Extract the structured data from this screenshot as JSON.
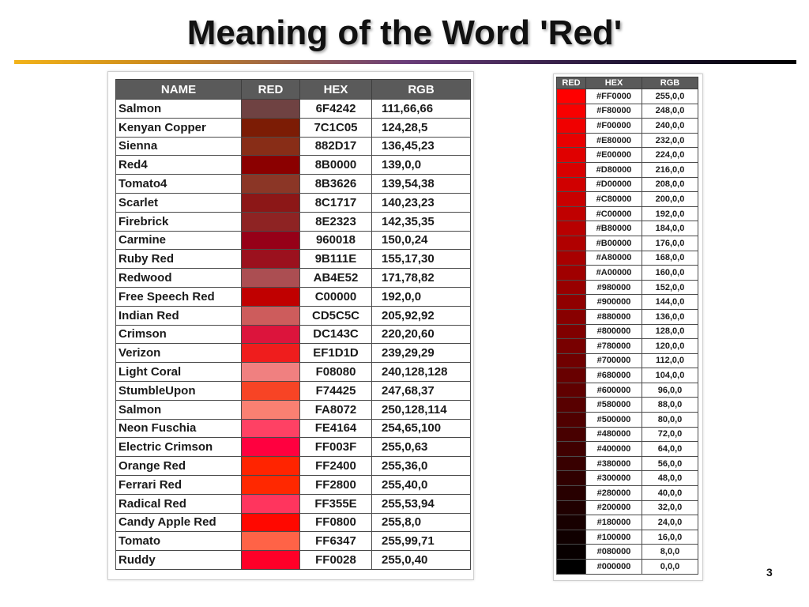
{
  "slide": {
    "title": "Meaning of the Word 'Red'",
    "page_number": "3"
  },
  "left_table": {
    "headers": {
      "name": "NAME",
      "red": "RED",
      "hex": "HEX",
      "rgb": "RGB"
    },
    "rows": [
      {
        "name": "Salmon",
        "hex": "6F4242",
        "rgb": "111,66,66",
        "color": "#6F4242"
      },
      {
        "name": "Kenyan Copper",
        "hex": "7C1C05",
        "rgb": "124,28,5",
        "color": "#7C1C05"
      },
      {
        "name": "Sienna",
        "hex": "882D17",
        "rgb": "136,45,23",
        "color": "#882D17"
      },
      {
        "name": "Red4",
        "hex": "8B0000",
        "rgb": "139,0,0",
        "color": "#8B0000"
      },
      {
        "name": "Tomato4",
        "hex": "8B3626",
        "rgb": "139,54,38",
        "color": "#8B3626"
      },
      {
        "name": "Scarlet",
        "hex": "8C1717",
        "rgb": "140,23,23",
        "color": "#8C1717"
      },
      {
        "name": "Firebrick",
        "hex": "8E2323",
        "rgb": "142,35,35",
        "color": "#8E2323"
      },
      {
        "name": "Carmine",
        "hex": "960018",
        "rgb": "150,0,24",
        "color": "#960018"
      },
      {
        "name": "Ruby Red",
        "hex": "9B111E",
        "rgb": "155,17,30",
        "color": "#9B111E"
      },
      {
        "name": "Redwood",
        "hex": "AB4E52",
        "rgb": "171,78,82",
        "color": "#AB4E52"
      },
      {
        "name": "Free Speech Red",
        "hex": "C00000",
        "rgb": "192,0,0",
        "color": "#C00000"
      },
      {
        "name": "Indian Red",
        "hex": "CD5C5C",
        "rgb": "205,92,92",
        "color": "#CD5C5C"
      },
      {
        "name": "Crimson",
        "hex": "DC143C",
        "rgb": "220,20,60",
        "color": "#DC143C"
      },
      {
        "name": "Verizon",
        "hex": "EF1D1D",
        "rgb": "239,29,29",
        "color": "#EF1D1D"
      },
      {
        "name": "Light Coral",
        "hex": "F08080",
        "rgb": "240,128,128",
        "color": "#F08080"
      },
      {
        "name": "StumbleUpon",
        "hex": "F74425",
        "rgb": "247,68,37",
        "color": "#F74425"
      },
      {
        "name": "Salmon",
        "hex": "FA8072",
        "rgb": "250,128,114",
        "color": "#FA8072"
      },
      {
        "name": "Neon Fuschia",
        "hex": "FE4164",
        "rgb": "254,65,100",
        "color": "#FE4164"
      },
      {
        "name": "Electric Crimson",
        "hex": "FF003F",
        "rgb": "255,0,63",
        "color": "#FF003F"
      },
      {
        "name": "Orange Red",
        "hex": "FF2400",
        "rgb": "255,36,0",
        "color": "#FF2400"
      },
      {
        "name": "Ferrari Red",
        "hex": "FF2800",
        "rgb": "255,40,0",
        "color": "#FF2800"
      },
      {
        "name": "Radical Red",
        "hex": "FF355E",
        "rgb": "255,53,94",
        "color": "#FF355E"
      },
      {
        "name": "Candy Apple Red",
        "hex": "FF0800",
        "rgb": "255,8,0",
        "color": "#FF0800"
      },
      {
        "name": "Tomato",
        "hex": "FF6347",
        "rgb": "255,99,71",
        "color": "#FF6347"
      },
      {
        "name": "Ruddy",
        "hex": "FF0028",
        "rgb": "255,0,40",
        "color": "#FF0028"
      }
    ]
  },
  "right_table": {
    "headers": {
      "red": "RED",
      "hex": "HEX",
      "rgb": "RGB"
    },
    "rows": [
      {
        "hex": "#FF0000",
        "rgb": "255,0,0",
        "color": "#FF0000"
      },
      {
        "hex": "#F80000",
        "rgb": "248,0,0",
        "color": "#F80000"
      },
      {
        "hex": "#F00000",
        "rgb": "240,0,0",
        "color": "#F00000"
      },
      {
        "hex": "#E80000",
        "rgb": "232,0,0",
        "color": "#E80000"
      },
      {
        "hex": "#E00000",
        "rgb": "224,0,0",
        "color": "#E00000"
      },
      {
        "hex": "#D80000",
        "rgb": "216,0,0",
        "color": "#D80000"
      },
      {
        "hex": "#D00000",
        "rgb": "208,0,0",
        "color": "#D00000"
      },
      {
        "hex": "#C80000",
        "rgb": "200,0,0",
        "color": "#C80000"
      },
      {
        "hex": "#C00000",
        "rgb": "192,0,0",
        "color": "#C00000"
      },
      {
        "hex": "#B80000",
        "rgb": "184,0,0",
        "color": "#B80000"
      },
      {
        "hex": "#B00000",
        "rgb": "176,0,0",
        "color": "#B00000"
      },
      {
        "hex": "#A80000",
        "rgb": "168,0,0",
        "color": "#A80000"
      },
      {
        "hex": "#A00000",
        "rgb": "160,0,0",
        "color": "#A00000"
      },
      {
        "hex": "#980000",
        "rgb": "152,0,0",
        "color": "#980000"
      },
      {
        "hex": "#900000",
        "rgb": "144,0,0",
        "color": "#900000"
      },
      {
        "hex": "#880000",
        "rgb": "136,0,0",
        "color": "#880000"
      },
      {
        "hex": "#800000",
        "rgb": "128,0,0",
        "color": "#800000"
      },
      {
        "hex": "#780000",
        "rgb": "120,0,0",
        "color": "#780000"
      },
      {
        "hex": "#700000",
        "rgb": "112,0,0",
        "color": "#700000"
      },
      {
        "hex": "#680000",
        "rgb": "104,0,0",
        "color": "#680000"
      },
      {
        "hex": "#600000",
        "rgb": "96,0,0",
        "color": "#600000"
      },
      {
        "hex": "#580000",
        "rgb": "88,0,0",
        "color": "#580000"
      },
      {
        "hex": "#500000",
        "rgb": "80,0,0",
        "color": "#500000"
      },
      {
        "hex": "#480000",
        "rgb": "72,0,0",
        "color": "#480000"
      },
      {
        "hex": "#400000",
        "rgb": "64,0,0",
        "color": "#400000"
      },
      {
        "hex": "#380000",
        "rgb": "56,0,0",
        "color": "#380000"
      },
      {
        "hex": "#300000",
        "rgb": "48,0,0",
        "color": "#300000"
      },
      {
        "hex": "#280000",
        "rgb": "40,0,0",
        "color": "#280000"
      },
      {
        "hex": "#200000",
        "rgb": "32,0,0",
        "color": "#200000"
      },
      {
        "hex": "#180000",
        "rgb": "24,0,0",
        "color": "#180000"
      },
      {
        "hex": "#100000",
        "rgb": "16,0,0",
        "color": "#100000"
      },
      {
        "hex": "#080000",
        "rgb": "8,0,0",
        "color": "#080000"
      },
      {
        "hex": "#000000",
        "rgb": "0,0,0",
        "color": "#000000"
      }
    ]
  }
}
